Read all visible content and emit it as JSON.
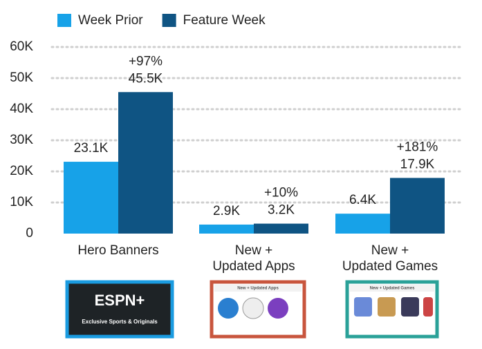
{
  "chart_data": {
    "type": "bar",
    "categories": [
      "Hero Banners",
      "New +\nUpdated Apps",
      "New +\nUpdated Games"
    ],
    "series": [
      {
        "name": "Week Prior",
        "color": "#17a2e8",
        "values": [
          23100,
          2900,
          6400
        ],
        "value_labels": [
          "23.1K",
          "2.9K",
          "6.4K"
        ]
      },
      {
        "name": "Feature Week",
        "color": "#0f5483",
        "values": [
          45500,
          3200,
          17900
        ],
        "value_labels": [
          "45.5K",
          "3.2K",
          "17.9K"
        ]
      }
    ],
    "annotations": [
      "+97%",
      "+10%",
      "+181%"
    ],
    "ylim": [
      0,
      60000
    ],
    "yticks": [
      0,
      {
        "value": 10000,
        "label": "10K"
      },
      {
        "value": 20000,
        "label": "20K"
      },
      {
        "value": 30000,
        "label": "30K"
      },
      {
        "value": 40000,
        "label": "40K"
      },
      {
        "value": 50000,
        "label": "50K"
      },
      {
        "value": 60000,
        "label": "60K"
      }
    ],
    "grid": true,
    "legend": "top"
  },
  "thumbnails": [
    {
      "texts": [
        "ESPN+",
        "Exclusive Sports & Originals"
      ]
    },
    {
      "texts": [
        "New + Updated Apps"
      ]
    },
    {
      "texts": [
        "New + Updated Games"
      ]
    }
  ]
}
